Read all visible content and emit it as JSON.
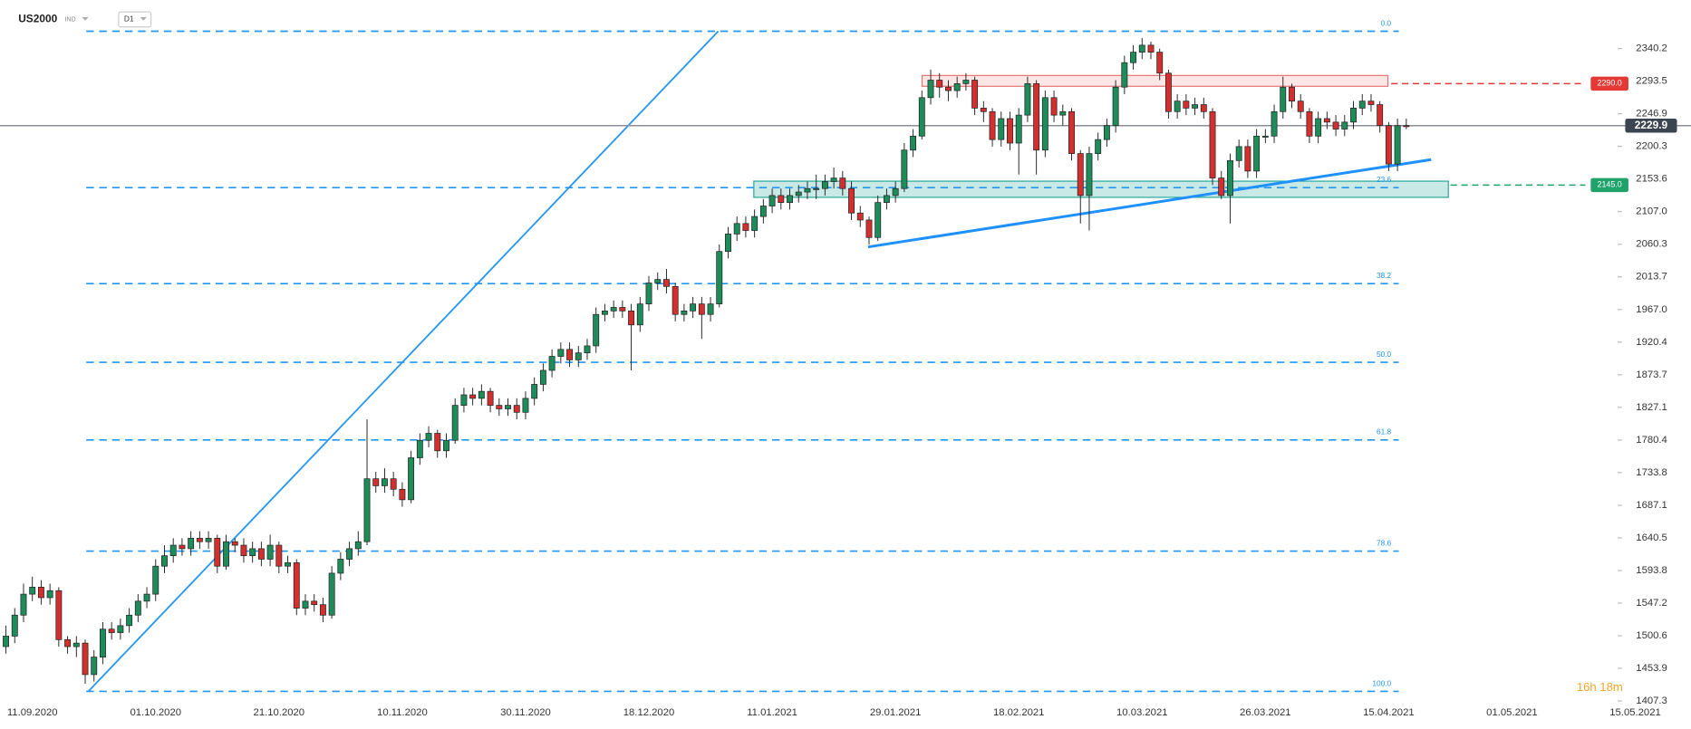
{
  "header": {
    "symbol": "US2000",
    "market": "IND",
    "interval": "D1"
  },
  "chart_data": {
    "type": "candlestick",
    "categories": [
      null,
      null,
      null,
      "11.09.2020",
      null,
      null,
      null,
      null,
      null,
      null,
      null,
      null,
      null,
      null,
      null,
      null,
      null,
      "01.10.2020",
      null,
      null,
      null,
      null,
      null,
      null,
      null,
      null,
      null,
      null,
      null,
      null,
      null,
      "21.10.2020",
      null,
      null,
      null,
      null,
      null,
      null,
      null,
      null,
      null,
      null,
      null,
      null,
      null,
      "10.11.2020",
      null,
      null,
      null,
      null,
      null,
      null,
      null,
      null,
      null,
      null,
      null,
      null,
      null,
      "30.11.2020",
      null,
      null,
      null,
      null,
      null,
      null,
      null,
      null,
      null,
      null,
      null,
      null,
      null,
      "18.12.2020",
      null,
      null,
      null,
      null,
      null,
      null,
      null,
      null,
      null,
      null,
      null,
      null,
      null,
      "11.01.2021",
      null,
      null,
      null,
      null,
      null,
      null,
      null,
      null,
      null,
      null,
      null,
      null,
      null,
      "29.01.2021",
      null,
      null,
      null,
      null,
      null,
      null,
      null,
      null,
      null,
      null,
      null,
      null,
      null,
      "18.02.2021",
      null,
      null,
      null,
      null,
      null,
      null,
      null,
      null,
      null,
      null,
      null,
      null,
      null,
      "10.03.2021",
      null,
      null,
      null,
      null,
      null,
      null,
      null,
      null,
      null,
      null,
      null,
      null,
      null,
      "26.03.2021",
      null,
      null,
      null,
      null,
      null,
      null,
      null,
      null,
      null,
      null,
      null,
      null,
      null,
      "15.04.2021",
      null,
      null,
      null,
      null,
      null,
      null,
      null,
      null,
      null,
      null,
      null,
      null,
      null,
      "01.05.2021",
      null,
      null,
      null,
      null,
      null,
      null,
      null,
      null,
      null,
      null,
      null,
      null,
      null,
      "15.05.2021"
    ],
    "open": [
      1485,
      1500,
      1530,
      1560,
      1570,
      1555,
      1565,
      1495,
      1485,
      1490,
      1445,
      1470,
      1510,
      1505,
      1515,
      1530,
      1550,
      1560,
      1600,
      1615,
      1630,
      1625,
      1640,
      1635,
      1640,
      1600,
      1635,
      1630,
      1615,
      1625,
      1610,
      1630,
      1600,
      1605,
      1540,
      1550,
      1545,
      1530,
      1590,
      1610,
      1625,
      1635,
      1725,
      1715,
      1725,
      1710,
      1695,
      1755,
      1780,
      1790,
      1765,
      1780,
      1830,
      1845,
      1840,
      1850,
      1830,
      1825,
      1830,
      1820,
      1840,
      1860,
      1880,
      1900,
      1910,
      1895,
      1905,
      1915,
      1960,
      1965,
      1970,
      1965,
      1945,
      1975,
      2005,
      2010,
      2000,
      1960,
      1965,
      1975,
      1960,
      1975,
      2050,
      2075,
      2090,
      2080,
      2100,
      2115,
      2130,
      2120,
      2130,
      2135,
      2140,
      2140,
      2150,
      2155,
      2140,
      2105,
      2095,
      2070,
      2120,
      2130,
      2140,
      2195,
      2215,
      2270,
      2295,
      2285,
      2280,
      2290,
      2295,
      2255,
      2250,
      2210,
      2240,
      2205,
      2245,
      2290,
      2195,
      2270,
      2245,
      2250,
      2190,
      2130,
      2190,
      2210,
      2230,
      2285,
      2320,
      2335,
      2345,
      2335,
      2305,
      2250,
      2265,
      2255,
      2260,
      2250,
      2155,
      2130,
      2180,
      2200,
      2165,
      2215,
      2215,
      2250,
      2285,
      2265,
      2250,
      2215,
      2240,
      2235,
      2225,
      2235,
      2255,
      2265,
      2260,
      2230,
      2175,
      2230,
      null,
      null,
      null,
      null,
      null,
      null,
      null,
      null,
      null,
      null,
      null,
      null,
      null,
      null,
      null,
      null,
      null,
      null,
      null,
      null,
      null,
      null,
      null,
      null,
      null,
      null
    ],
    "high": [
      1515,
      1540,
      1575,
      1585,
      1580,
      1575,
      1570,
      1500,
      1500,
      1495,
      1480,
      1520,
      1520,
      1525,
      1540,
      1560,
      1570,
      1610,
      1630,
      1640,
      1640,
      1650,
      1650,
      1650,
      1645,
      1645,
      1640,
      1640,
      1635,
      1635,
      1645,
      1635,
      1615,
      1610,
      1560,
      1560,
      1555,
      1600,
      1620,
      1635,
      1650,
      1810,
      1735,
      1740,
      1735,
      1720,
      1765,
      1790,
      1800,
      1795,
      1790,
      1840,
      1855,
      1855,
      1860,
      1855,
      1840,
      1840,
      1840,
      1850,
      1870,
      1890,
      1910,
      1920,
      1920,
      1915,
      1925,
      1970,
      1975,
      1980,
      1980,
      1975,
      1985,
      2015,
      2020,
      2025,
      2005,
      1975,
      1985,
      1985,
      1985,
      2060,
      2085,
      2100,
      2100,
      2110,
      2125,
      2140,
      2140,
      2140,
      2145,
      2150,
      2160,
      2160,
      2170,
      2165,
      2150,
      2115,
      2100,
      2130,
      2140,
      2150,
      2205,
      2225,
      2280,
      2310,
      2305,
      2295,
      2300,
      2305,
      2300,
      2265,
      2255,
      2250,
      2250,
      2255,
      2300,
      2295,
      2280,
      2280,
      2260,
      2255,
      2195,
      2200,
      2220,
      2240,
      2295,
      2330,
      2345,
      2355,
      2350,
      2340,
      2310,
      2275,
      2275,
      2270,
      2270,
      2255,
      2165,
      2190,
      2210,
      2210,
      2225,
      2225,
      2260,
      2300,
      2290,
      2275,
      2255,
      2250,
      2250,
      2245,
      2245,
      2265,
      2275,
      2275,
      2265,
      2235,
      2240,
      2240,
      null,
      null,
      null,
      null,
      null,
      null,
      null,
      null,
      null,
      null,
      null,
      null,
      null,
      null,
      null,
      null,
      null,
      null,
      null,
      null,
      null,
      null,
      null,
      null,
      null,
      null
    ],
    "low": [
      1475,
      1490,
      1520,
      1550,
      1545,
      1545,
      1485,
      1475,
      1470,
      1432,
      1435,
      1460,
      1495,
      1495,
      1505,
      1520,
      1540,
      1550,
      1590,
      1605,
      1615,
      1615,
      1625,
      1625,
      1590,
      1595,
      1620,
      1605,
      1605,
      1600,
      1600,
      1590,
      1590,
      1530,
      1530,
      1535,
      1520,
      1525,
      1580,
      1600,
      1615,
      1630,
      1705,
      1705,
      1700,
      1685,
      1690,
      1745,
      1770,
      1755,
      1755,
      1775,
      1820,
      1830,
      1830,
      1820,
      1815,
      1815,
      1810,
      1810,
      1830,
      1850,
      1870,
      1890,
      1885,
      1885,
      1895,
      1905,
      1950,
      1955,
      1955,
      1880,
      1935,
      1965,
      1995,
      1990,
      1950,
      1950,
      1955,
      1925,
      1950,
      1970,
      2040,
      2065,
      2070,
      2070,
      2090,
      2105,
      2110,
      2110,
      2120,
      2125,
      2125,
      2130,
      2140,
      2130,
      2095,
      2085,
      2060,
      2065,
      2110,
      2120,
      2135,
      2185,
      2210,
      2260,
      2270,
      2265,
      2270,
      2280,
      2245,
      2235,
      2200,
      2200,
      2195,
      2160,
      2235,
      2160,
      2185,
      2235,
      2230,
      2180,
      2090,
      2080,
      2180,
      2200,
      2220,
      2275,
      2310,
      2325,
      2325,
      2295,
      2240,
      2240,
      2245,
      2245,
      2240,
      2145,
      2125,
      2090,
      2170,
      2155,
      2155,
      2205,
      2205,
      2240,
      2255,
      2240,
      2205,
      2205,
      2225,
      2215,
      2215,
      2225,
      2245,
      2250,
      2220,
      2165,
      2165,
      2225,
      null,
      null,
      null,
      null,
      null,
      null,
      null,
      null,
      null,
      null,
      null,
      null,
      null,
      null,
      null,
      null,
      null,
      null,
      null,
      null,
      null,
      null,
      null,
      null,
      null,
      null
    ],
    "close": [
      1500,
      1530,
      1560,
      1570,
      1555,
      1565,
      1495,
      1485,
      1490,
      1445,
      1470,
      1510,
      1505,
      1515,
      1530,
      1550,
      1560,
      1600,
      1615,
      1630,
      1625,
      1640,
      1635,
      1640,
      1600,
      1635,
      1630,
      1615,
      1625,
      1610,
      1630,
      1600,
      1605,
      1540,
      1550,
      1545,
      1530,
      1590,
      1610,
      1625,
      1635,
      1725,
      1715,
      1725,
      1710,
      1695,
      1755,
      1780,
      1790,
      1765,
      1780,
      1830,
      1845,
      1840,
      1850,
      1830,
      1825,
      1830,
      1820,
      1840,
      1860,
      1880,
      1900,
      1910,
      1895,
      1905,
      1915,
      1960,
      1965,
      1970,
      1965,
      1945,
      1975,
      2005,
      2010,
      2000,
      1960,
      1965,
      1975,
      1960,
      1975,
      2050,
      2075,
      2090,
      2080,
      2100,
      2115,
      2130,
      2120,
      2130,
      2135,
      2140,
      2140,
      2150,
      2155,
      2140,
      2105,
      2095,
      2070,
      2120,
      2130,
      2140,
      2195,
      2215,
      2270,
      2295,
      2285,
      2280,
      2290,
      2295,
      2255,
      2250,
      2210,
      2240,
      2205,
      2245,
      2290,
      2195,
      2270,
      2245,
      2250,
      2190,
      2130,
      2190,
      2210,
      2230,
      2285,
      2320,
      2335,
      2345,
      2335,
      2305,
      2250,
      2265,
      2255,
      2260,
      2250,
      2155,
      2130,
      2180,
      2200,
      2165,
      2215,
      2215,
      2250,
      2285,
      2265,
      2250,
      2215,
      2240,
      2235,
      2225,
      2235,
      2255,
      2265,
      2260,
      2230,
      2175,
      2230,
      2229.9,
      null,
      null,
      null,
      null,
      null,
      null,
      null,
      null,
      null,
      null,
      null,
      null,
      null,
      null,
      null,
      null,
      null,
      null,
      null,
      null,
      null,
      null,
      null,
      null,
      null,
      null
    ],
    "up_color": "#1e8c5a",
    "down_color": "#d32f2f",
    "ylim": [
      1404.2,
      2409.6
    ],
    "yticks": [
      2340.2,
      2293.5,
      2246.9,
      2200.3,
      2153.6,
      {
        "value": 2107,
        "label": "2107.0"
      },
      2060.3,
      2013.7,
      {
        "value": 1967,
        "label": "1967.0"
      },
      1920.4,
      1873.7,
      1827.1,
      1780.4,
      1733.8,
      1687.1,
      1640.5,
      1593.8,
      1547.2,
      1500.6,
      1453.9,
      1407.3
    ],
    "fib_levels": [
      {
        "value": 2364.9,
        "label": "0.0"
      },
      {
        "value": 2141.3,
        "label": "23.6"
      },
      {
        "value": 2004.0,
        "label": "38.2"
      },
      {
        "value": 1891.5,
        "label": "50.0"
      },
      {
        "value": 1780.5,
        "label": "61.8"
      },
      {
        "value": 1621.6,
        "label": "78.6"
      },
      {
        "value": 1421.0,
        "label": "100.0"
      }
    ],
    "fib_color": "#2196f3",
    "price_lines": [
      {
        "value": 2290,
        "label": "2290.0",
        "color": "#e53935",
        "style": "dashed"
      },
      {
        "value": 2229.9,
        "label": "2229.9",
        "color": "#3d4451",
        "style": "solid"
      },
      {
        "value": 2145,
        "label": "2145.0",
        "color": "#1fa36a",
        "style": "dashed"
      }
    ],
    "countdown": "16h 18m"
  }
}
